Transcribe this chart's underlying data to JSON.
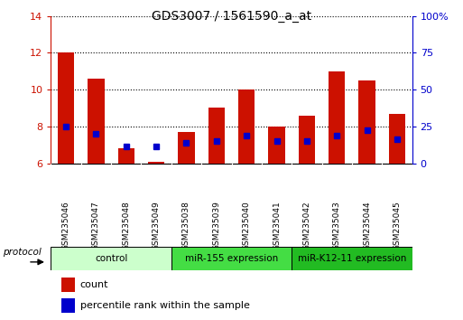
{
  "title": "GDS3007 / 1561590_a_at",
  "samples": [
    "GSM235046",
    "GSM235047",
    "GSM235048",
    "GSM235049",
    "GSM235038",
    "GSM235039",
    "GSM235040",
    "GSM235041",
    "GSM235042",
    "GSM235043",
    "GSM235044",
    "GSM235045"
  ],
  "count_values": [
    12.0,
    10.6,
    6.8,
    6.1,
    7.7,
    9.0,
    10.0,
    8.0,
    8.6,
    11.0,
    10.5,
    8.7
  ],
  "percentile_left_values": [
    8.0,
    7.6,
    6.9,
    6.9,
    7.1,
    7.2,
    7.5,
    7.2,
    7.2,
    7.5,
    7.8,
    7.3
  ],
  "ylim_left": [
    6,
    14
  ],
  "ylim_right": [
    0,
    100
  ],
  "yticks_left": [
    6,
    8,
    10,
    12,
    14
  ],
  "yticks_right": [
    0,
    25,
    50,
    75,
    100
  ],
  "right_tick_labels": [
    "0",
    "25",
    "50",
    "75",
    "100%"
  ],
  "bar_color": "#cc1100",
  "percentile_color": "#0000cc",
  "groups": [
    {
      "label": "control",
      "start": 0,
      "end": 4,
      "color": "#ccffcc"
    },
    {
      "label": "miR-155 expression",
      "start": 4,
      "end": 8,
      "color": "#44dd44"
    },
    {
      "label": "miR-K12-11 expression",
      "start": 8,
      "end": 12,
      "color": "#22bb22"
    }
  ],
  "protocol_label": "protocol",
  "legend_count": "count",
  "legend_percentile": "percentile rank within the sample",
  "bar_width": 0.55,
  "background_color": "#ffffff",
  "axis_color_left": "#cc1100",
  "axis_color_right": "#0000cc",
  "label_bg": "#cccccc"
}
